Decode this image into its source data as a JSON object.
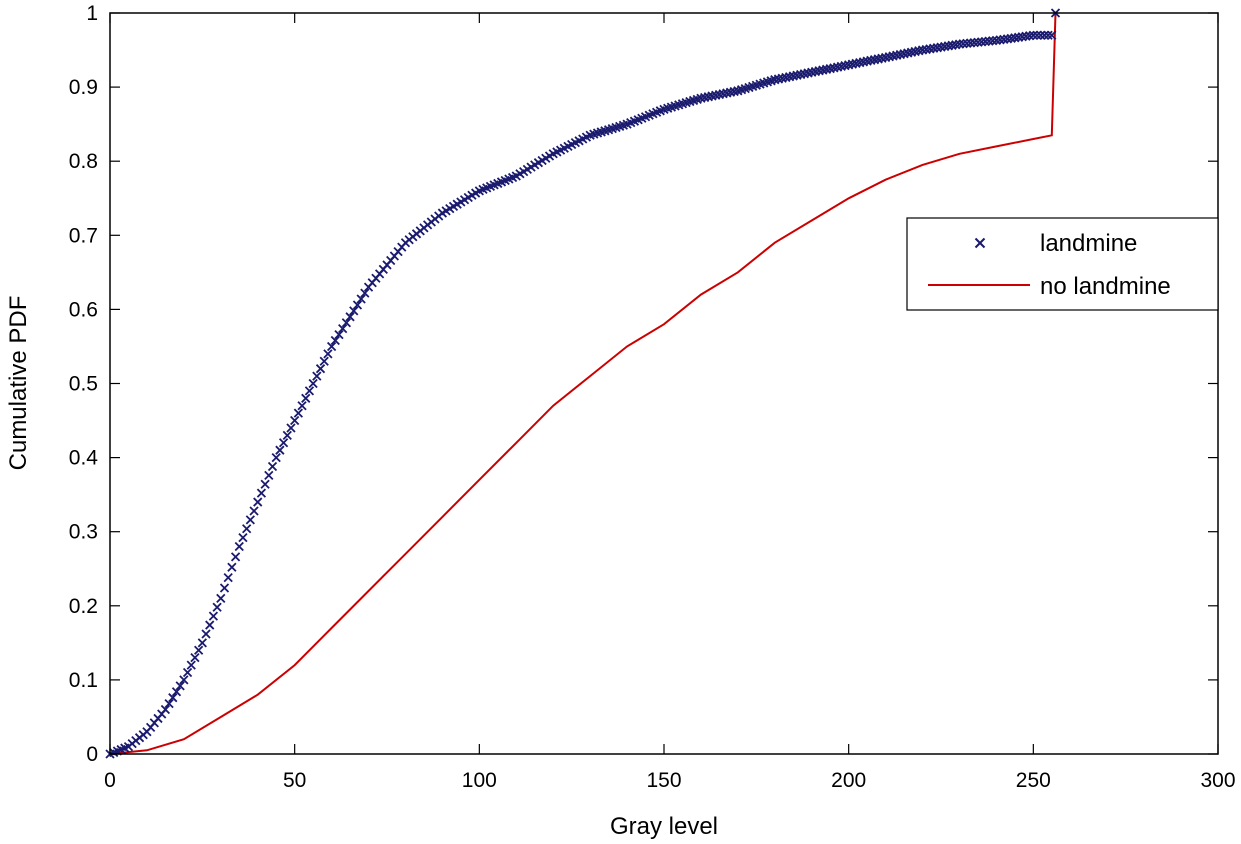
{
  "chart_data": {
    "type": "line",
    "title": "",
    "xlabel": "Gray level",
    "ylabel": "Cumulative PDF",
    "xlim": [
      0,
      300
    ],
    "ylim": [
      0,
      1
    ],
    "xticks": [
      0,
      50,
      100,
      150,
      200,
      250,
      300
    ],
    "yticks": [
      0,
      0.1,
      0.2,
      0.3,
      0.4,
      0.5,
      0.6,
      0.7,
      0.8,
      0.9,
      1
    ],
    "xtick_labels": [
      "0",
      "50",
      "100",
      "150",
      "200",
      "250",
      "300"
    ],
    "ytick_labels": [
      "0",
      "0.1",
      "0.2",
      "0.3",
      "0.4",
      "0.5",
      "0.6",
      "0.7",
      "0.8",
      "0.9",
      "1"
    ],
    "grid": false,
    "legend_position": "upper-right",
    "series": [
      {
        "name": "landmine",
        "style": "markers-x",
        "color": "#1a1a6e",
        "x": [
          0,
          5,
          10,
          15,
          20,
          25,
          30,
          35,
          40,
          45,
          50,
          55,
          60,
          65,
          70,
          75,
          80,
          85,
          90,
          95,
          100,
          110,
          120,
          130,
          140,
          150,
          160,
          170,
          180,
          190,
          200,
          210,
          220,
          230,
          240,
          250,
          255,
          256
        ],
        "y": [
          0,
          0.01,
          0.03,
          0.06,
          0.1,
          0.15,
          0.21,
          0.28,
          0.34,
          0.4,
          0.45,
          0.5,
          0.55,
          0.59,
          0.63,
          0.66,
          0.69,
          0.71,
          0.73,
          0.745,
          0.76,
          0.78,
          0.81,
          0.835,
          0.85,
          0.87,
          0.885,
          0.895,
          0.91,
          0.92,
          0.93,
          0.94,
          0.95,
          0.958,
          0.963,
          0.97,
          0.97,
          1.0
        ]
      },
      {
        "name": "no landmine",
        "style": "line",
        "color": "#cc0000",
        "x": [
          0,
          10,
          20,
          30,
          40,
          50,
          60,
          70,
          80,
          90,
          100,
          110,
          120,
          130,
          140,
          150,
          160,
          170,
          180,
          190,
          200,
          210,
          220,
          230,
          240,
          250,
          255,
          256
        ],
        "y": [
          0,
          0.005,
          0.02,
          0.05,
          0.08,
          0.12,
          0.17,
          0.22,
          0.27,
          0.32,
          0.37,
          0.42,
          0.47,
          0.51,
          0.55,
          0.58,
          0.62,
          0.65,
          0.69,
          0.72,
          0.75,
          0.775,
          0.795,
          0.81,
          0.82,
          0.83,
          0.835,
          1.0
        ]
      }
    ]
  }
}
